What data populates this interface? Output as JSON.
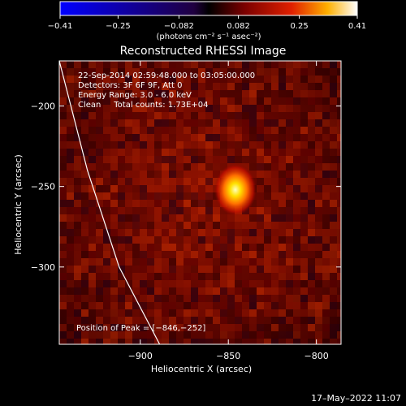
{
  "chart_data": {
    "type": "heatmap",
    "title": "Reconstructed RHESSI Image",
    "xlabel": "Heliocentric X (arcsec)",
    "ylabel": "Heliocentric Y (arcsec)",
    "xlim": [
      -946,
      -786
    ],
    "ylim": [
      -348,
      -172
    ],
    "x_ticks": [
      -900,
      -850,
      -800
    ],
    "y_ticks": [
      -200,
      -250,
      -300
    ],
    "x_tick_labels": [
      "−900",
      "−850",
      "−800"
    ],
    "y_tick_labels": [
      "−200",
      "−250",
      "−300"
    ],
    "colorbar": {
      "range": [
        -0.41,
        0.41
      ],
      "ticks": [
        -0.41,
        -0.25,
        -0.082,
        0.082,
        0.25,
        0.41
      ],
      "tick_labels": [
        "−0.41",
        "−0.25",
        "−0.082",
        "0.082",
        "0.25",
        "0.41"
      ],
      "units": "(photons cm⁻² s⁻¹ asec⁻²)"
    },
    "source": {
      "peak_x": -846,
      "peak_y": -252
    },
    "limb_curve": [
      [
        -946,
        -172
      ],
      [
        -930,
        -240
      ],
      [
        -912,
        -300
      ],
      [
        -889,
        -348
      ]
    ],
    "info_lines": [
      "22-Sep-2014 02:59:48.000 to 03:05:00.000",
      "Detectors: 3F 6F 9F, Att 0",
      "Energy Range: 3.0 - 6.0 keV",
      "Clean     Total counts: 1.73E+04"
    ],
    "peak_label": "Position of Peak = [−846,−252]",
    "timestamp": "17–May–2022 11:07"
  }
}
